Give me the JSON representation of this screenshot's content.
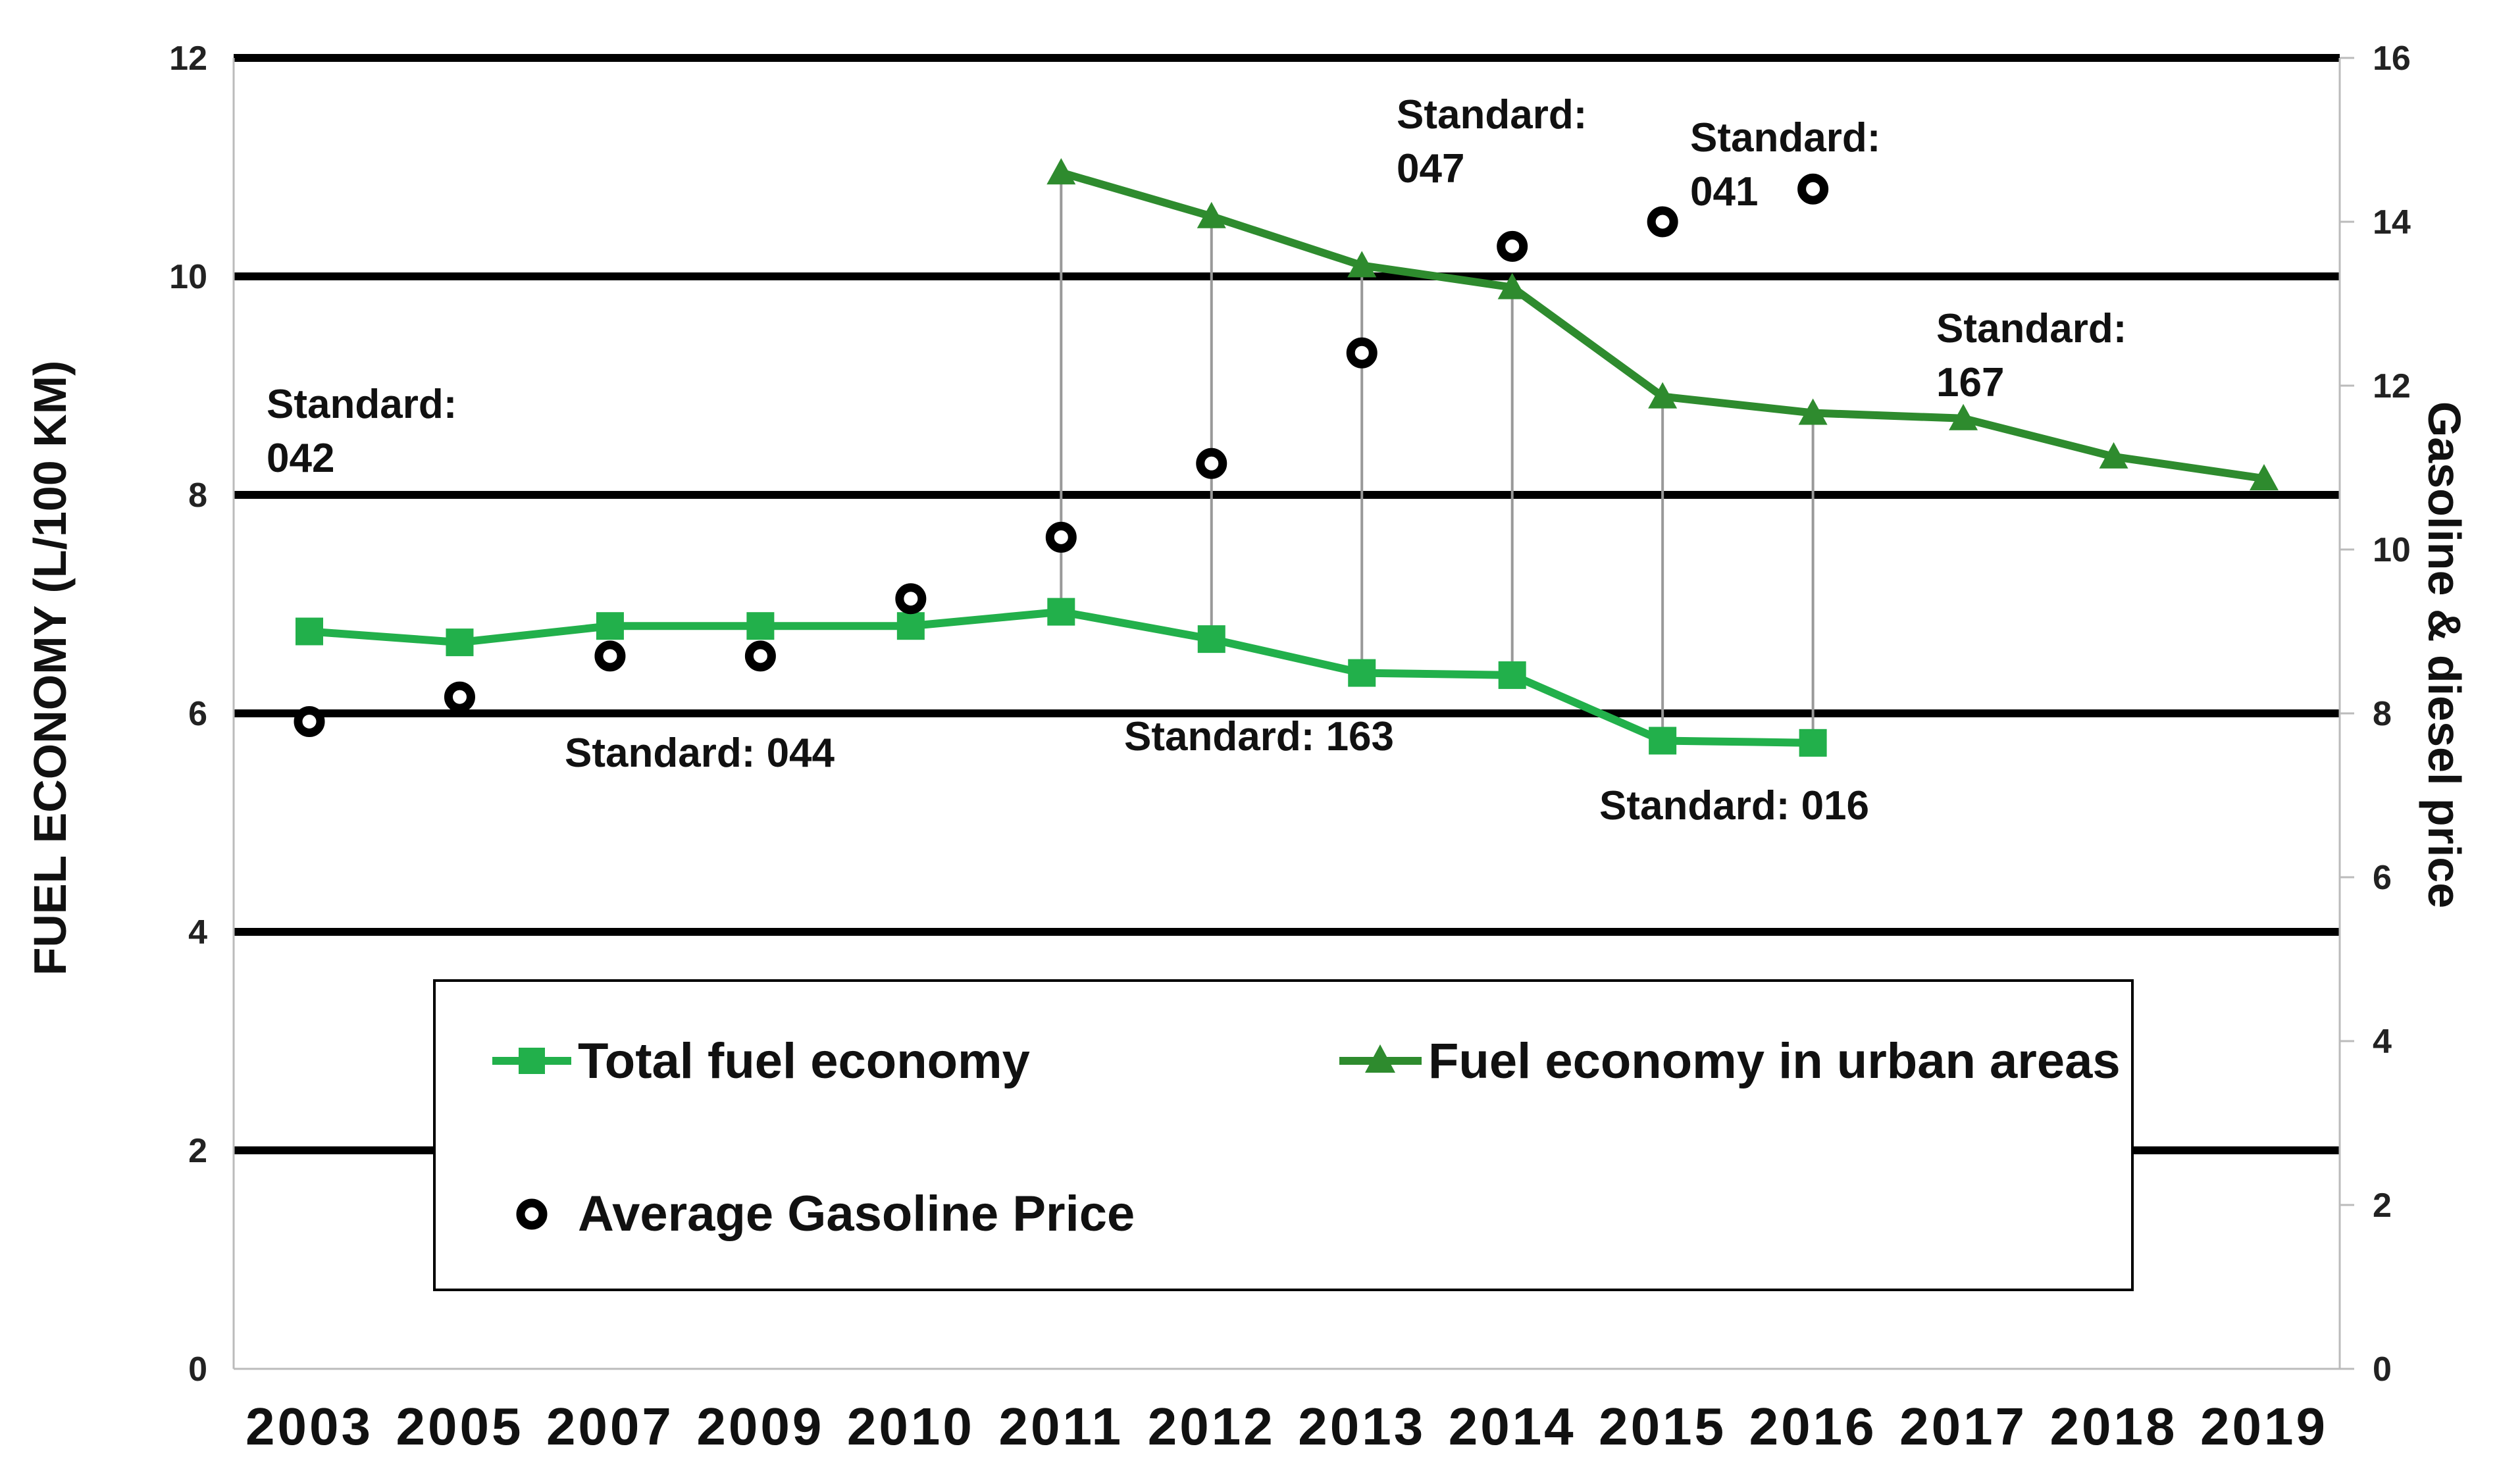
{
  "chart_data": {
    "type": "line",
    "title": "",
    "categories": [
      "2003",
      "2005",
      "2007",
      "2009",
      "2010",
      "2011",
      "2012",
      "2013",
      "2014",
      "2015",
      "2016",
      "2017",
      "2018",
      "2019"
    ],
    "ylabel": "FUEL ECONOMY  (L/100 KM)",
    "y2label": "Gasoline & diesel price",
    "ylim": [
      0,
      12
    ],
    "y2lim": [
      0,
      16
    ],
    "yticks": [
      0,
      2,
      4,
      6,
      8,
      10,
      12
    ],
    "y2ticks": [
      0,
      2,
      4,
      6,
      8,
      10,
      12,
      14,
      16
    ],
    "series": [
      {
        "name": "Total fuel economy",
        "axis": "left",
        "marker": "square",
        "color": "#22b04b",
        "values": [
          6.75,
          6.65,
          6.8,
          6.8,
          6.8,
          6.93,
          6.68,
          6.37,
          6.35,
          5.75,
          5.73,
          null,
          null,
          null
        ]
      },
      {
        "name": "Fuel economy in urban areas",
        "axis": "left",
        "marker": "triangle",
        "color": "#2e8b2e",
        "values": [
          null,
          null,
          null,
          null,
          null,
          10.95,
          10.55,
          10.1,
          9.9,
          8.9,
          8.75,
          8.7,
          8.35,
          8.15
        ]
      },
      {
        "name": "Average Gasoline Price",
        "axis": "right",
        "marker": "ring",
        "color": "#000000",
        "values": [
          7.9,
          8.2,
          8.7,
          8.7,
          9.4,
          10.15,
          11.05,
          12.4,
          13.7,
          14.0,
          null,
          null,
          null,
          null
        ],
        "extra_points": [
          {
            "category": "2016",
            "value": 14.4
          }
        ]
      }
    ],
    "droplines": [
      "2011",
      "2012",
      "2013",
      "2014",
      "2015",
      "2016"
    ],
    "annotations": [
      {
        "lines": [
          "Standard:",
          "042"
        ]
      },
      {
        "lines": [
          "Standard: 044"
        ]
      },
      {
        "lines": [
          "Standard: 163"
        ]
      },
      {
        "lines": [
          "Standard:",
          "047"
        ]
      },
      {
        "lines": [
          "Standard:",
          "041"
        ]
      },
      {
        "lines": [
          "Standard: 016"
        ]
      },
      {
        "lines": [
          "Standard:",
          "167"
        ]
      }
    ],
    "legend": {
      "position": "lower-center",
      "entries": [
        "Total fuel economy",
        "Fuel economy in urban areas",
        "Average Gasoline Price"
      ]
    },
    "grid": true
  }
}
